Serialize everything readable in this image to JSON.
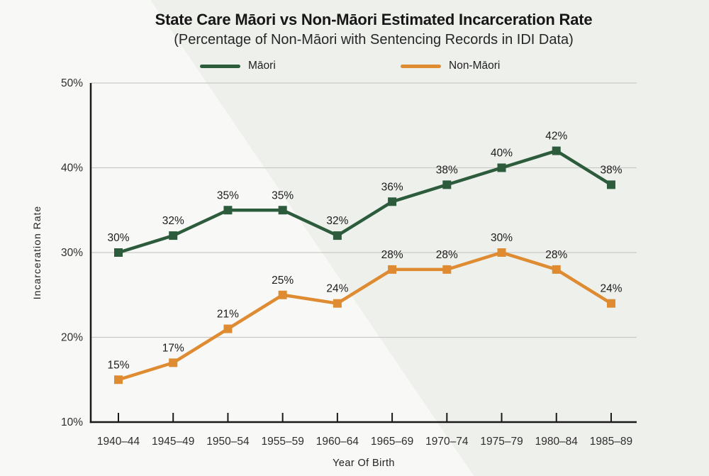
{
  "colors": {
    "background_light": "#f8f8f6",
    "background_shade": "#eef0ec",
    "grid": "#c9c9c7",
    "axis": "#1a1a1a",
    "text": "#1f1f1f",
    "maori_green": "#2c5c3c",
    "non_maori_orange": "#de8b31"
  },
  "chart_data": {
    "type": "line",
    "title": "State Care Māori vs Non-Māori Estimated Incarceration Rate",
    "subtitle": "(Percentage of Non-Māori with Sentencing Records in IDI Data)",
    "categories": [
      "1940–44",
      "1945–49",
      "1950–54",
      "1955–59",
      "1960–64",
      "1965–69",
      "1970–74",
      "1975–79",
      "1980–84",
      "1985–89"
    ],
    "series": [
      {
        "id": "maori",
        "name": "Māori",
        "color": "#2c5c3c",
        "values": [
          30,
          32,
          35,
          35,
          32,
          36,
          38,
          40,
          42,
          38
        ]
      },
      {
        "id": "non-maori",
        "name": "Non-Māori",
        "color": "#de8b31",
        "values": [
          15,
          17,
          21,
          25,
          24,
          28,
          28,
          30,
          28,
          24
        ]
      }
    ],
    "xlabel": "Year Of Birth",
    "ylabel": "Incarceration Rate",
    "ylim": [
      10,
      50
    ],
    "yticks": [
      50,
      40,
      30,
      20,
      10
    ],
    "gridlines_at": [
      50,
      40,
      30,
      20
    ],
    "unit_suffix": "%",
    "data_labels": true,
    "legend_position": "top",
    "marker": "square",
    "grid": "horizontal-only"
  }
}
